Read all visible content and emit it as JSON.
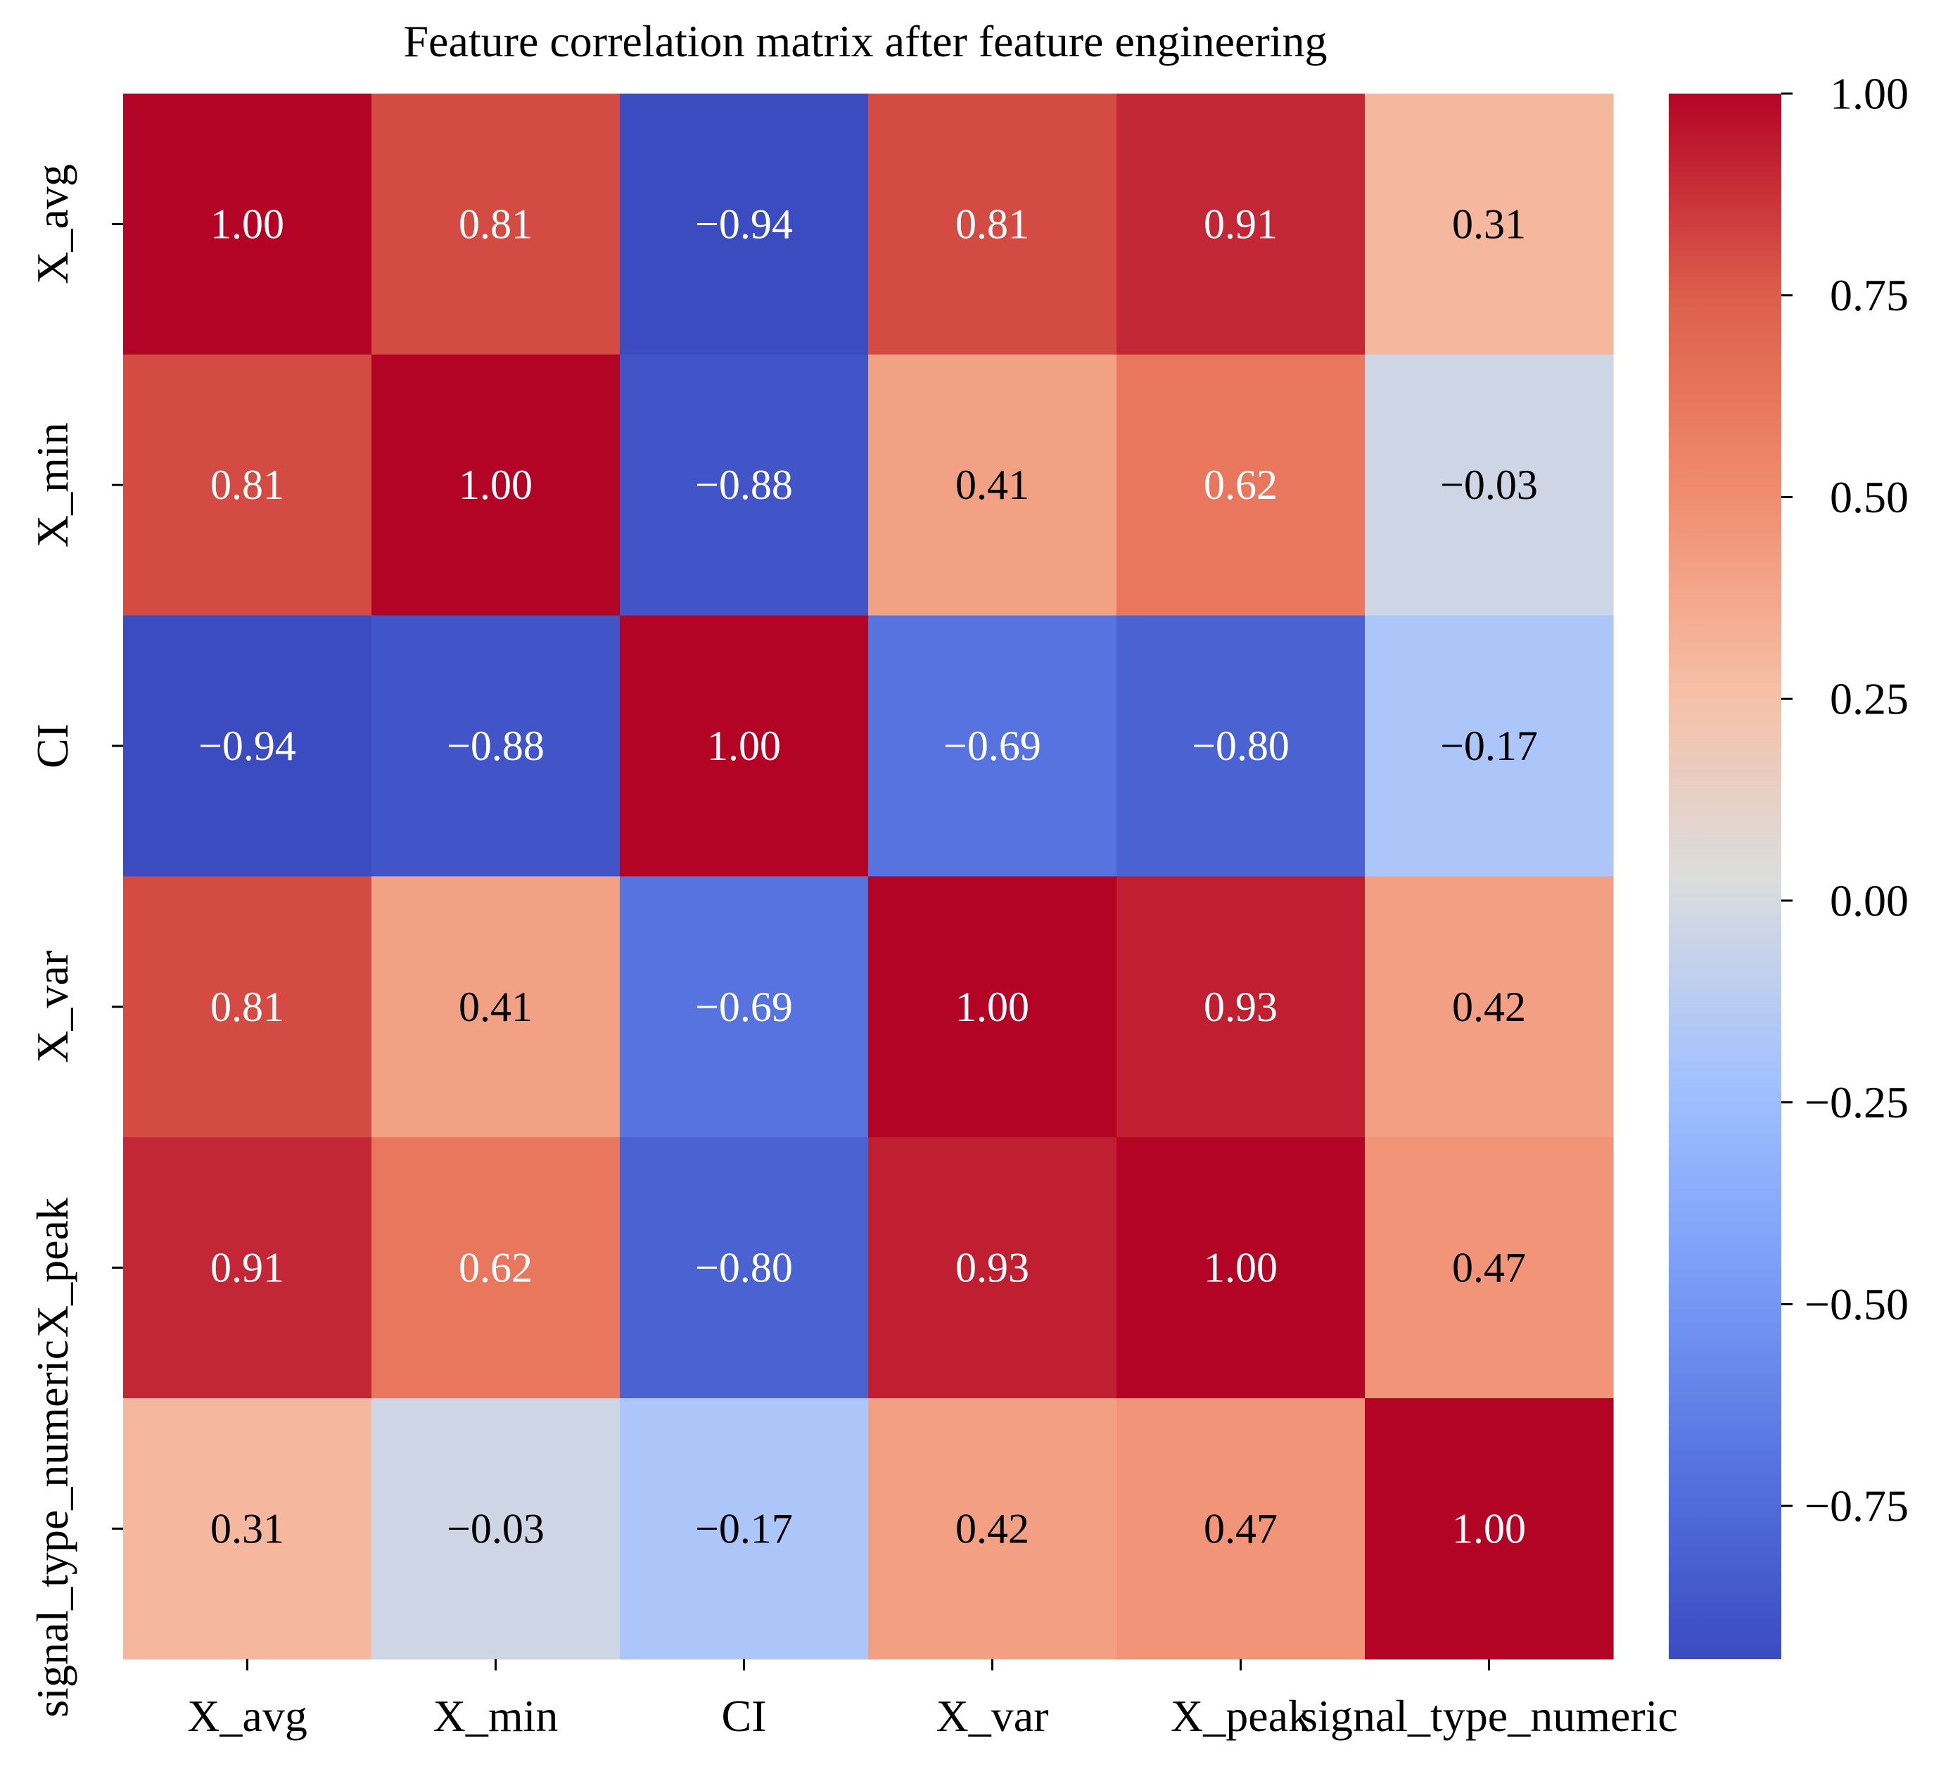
{
  "chart_data": {
    "type": "heatmap",
    "title": "Feature correlation matrix after feature engineering",
    "features": [
      "X_avg",
      "X_min",
      "CI",
      "X_var",
      "X_peak",
      "signal_type_numeric"
    ],
    "matrix": [
      [
        1.0,
        0.81,
        -0.94,
        0.81,
        0.91,
        0.31
      ],
      [
        0.81,
        1.0,
        -0.88,
        0.41,
        0.62,
        -0.03
      ],
      [
        -0.94,
        -0.88,
        1.0,
        -0.69,
        -0.8,
        -0.17
      ],
      [
        0.81,
        0.41,
        -0.69,
        1.0,
        0.93,
        0.42
      ],
      [
        0.91,
        0.62,
        -0.8,
        0.93,
        1.0,
        0.47
      ],
      [
        0.31,
        -0.03,
        -0.17,
        0.42,
        0.47,
        1.0
      ]
    ],
    "annotations": [
      [
        "1.00",
        "0.81",
        "−0.94",
        "0.81",
        "0.91",
        "0.31"
      ],
      [
        "0.81",
        "1.00",
        "−0.88",
        "0.41",
        "0.62",
        "−0.03"
      ],
      [
        "−0.94",
        "−0.88",
        "1.00",
        "−0.69",
        "−0.80",
        "−0.17"
      ],
      [
        "0.81",
        "0.41",
        "−0.69",
        "1.00",
        "0.93",
        "0.42"
      ],
      [
        "0.91",
        "0.62",
        "−0.80",
        "0.93",
        "1.00",
        "0.47"
      ],
      [
        "0.31",
        "−0.03",
        "−0.17",
        "0.42",
        "0.47",
        "1.00"
      ]
    ],
    "colormap": "coolwarm",
    "colorbar": {
      "vmin": -0.94,
      "vmax": 1.0,
      "ticks": [
        1.0,
        0.75,
        0.5,
        0.25,
        0.0,
        -0.25,
        -0.5,
        -0.75
      ],
      "tick_labels": [
        "1.00",
        "0.75",
        "0.50",
        "0.25",
        "0.00",
        "−0.25",
        "−0.50",
        "−0.75"
      ]
    }
  }
}
